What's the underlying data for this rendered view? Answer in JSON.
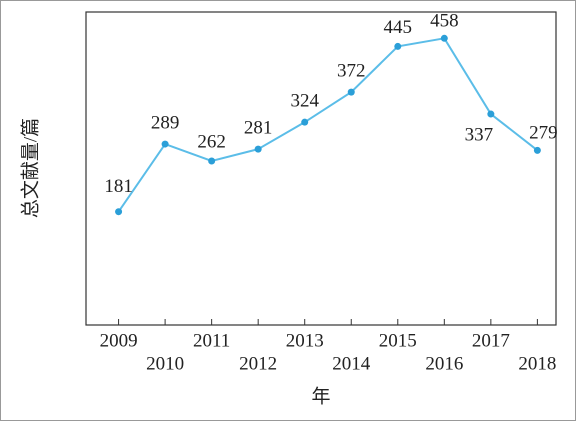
{
  "chart_data": {
    "type": "line",
    "y_label": "总文献量/篇",
    "x_label": "年",
    "x": [
      2009,
      2010,
      2011,
      2012,
      2013,
      2014,
      2015,
      2016,
      2017,
      2018
    ],
    "series": [
      {
        "color": "#5bbde8",
        "values": [
          181,
          289,
          262,
          281,
          324,
          372,
          445,
          458,
          337,
          279
        ]
      }
    ],
    "xlim": [
      2008.3,
      2018.4
    ],
    "xticks": [
      2009,
      2010,
      2011,
      2012,
      2013,
      2014,
      2015,
      2016,
      2017,
      2018
    ],
    "ylim": [
      0,
      500
    ]
  }
}
